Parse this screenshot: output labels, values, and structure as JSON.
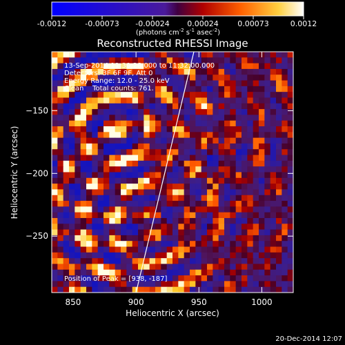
{
  "chart_data": {
    "type": "heatmap",
    "title": "Reconstructed RHESSI Image",
    "xlabel": "Heliocentric X (arcsec)",
    "ylabel": "Heliocentric Y (arcsec)",
    "xlim": [
      833,
      1025
    ],
    "ylim": [
      -295,
      -103
    ],
    "x_ticks": [
      850,
      900,
      950,
      1000
    ],
    "y_ticks": [
      -150,
      -200,
      -250
    ],
    "annotations": [
      "13-Sep-2014 11:30:28.000 to 11:32:00.000",
      "Detectors: 3F 6F 9F, Att 0",
      "Energy Range: 12.0 - 25.0 keV",
      "Clean    Total counts: 761.",
      "Position of Peak = [938, -187]"
    ],
    "colorbar": {
      "ticks": [
        "-0.0012",
        "-0.00073",
        "-0.00024",
        "0.00024",
        "0.00073",
        "0.0012"
      ],
      "unit_prefix": "(photons cm",
      "unit_exp1": "-2",
      "unit_mid": " s",
      "unit_exp2": "-1",
      "unit_mid2": " asec",
      "unit_exp3": "-2",
      "unit_suffix": ")",
      "range": [
        -0.0012,
        0.0012
      ]
    },
    "limb_line": {
      "x": [
        900,
        946
      ],
      "y": [
        -295,
        -103
      ]
    },
    "grid": false
  },
  "footer": {
    "timestamp": "20-Dec-2014 12:07"
  }
}
